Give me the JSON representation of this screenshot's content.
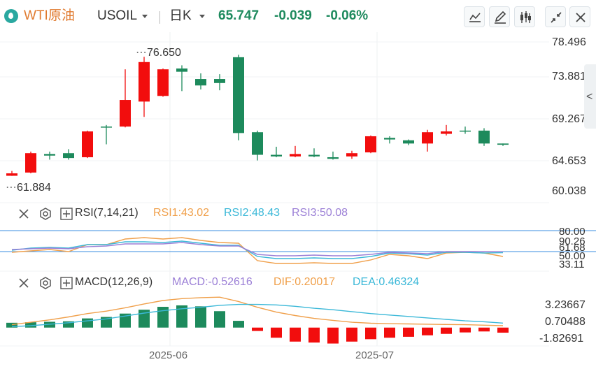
{
  "header": {
    "instrument_name": "WTI原油",
    "symbol": "USOIL",
    "period": "日K",
    "price": "65.747",
    "change": "-0.039",
    "change_pct": "-0.06%"
  },
  "toolbar_icons": [
    "line-chart-icon",
    "pencil-icon",
    "candlestick-icon",
    "collapse-icon",
    "close-icon"
  ],
  "colors": {
    "up": "#f20d0d",
    "down": "#1d8a5c",
    "title": "#e07a2e",
    "rsi1": "#f0a04b",
    "rsi2": "#3bb8d8",
    "rsi3": "#9b7fd6",
    "dif": "#f0a04b",
    "dea": "#3bb8d8"
  },
  "price_axis": {
    "labels": [
      "78.496",
      "73.881",
      "69.267",
      "64.653",
      "60.038"
    ]
  },
  "high_marker": "76.650",
  "low_marker": "61.884",
  "rsi": {
    "title": "RSI(7,14,21)",
    "rsi1_label": "RSI1:43.02",
    "rsi2_label": "RSI2:48.43",
    "rsi3_label": "RSI3:50.08",
    "axis_labels": [
      "80.00",
      "90.26",
      "61.68",
      "50.00",
      "33.11"
    ]
  },
  "macd": {
    "title": "MACD(12,26,9)",
    "macd_label": "MACD:-0.52616",
    "dif_label": "DIF:0.20017",
    "dea_label": "DEA:0.46324",
    "axis_labels": [
      "3.23667",
      "0.70488",
      "-1.82691"
    ]
  },
  "x_axis": {
    "labels": [
      "2025-06",
      "2025-07"
    ]
  },
  "chart_data": [
    {
      "type": "candlestick",
      "period": "1D",
      "ylim": [
        60.038,
        78.496
      ],
      "candles": [
        {
          "o": 61.9,
          "h": 62.5,
          "l": 61.884,
          "c": 62.2
        },
        {
          "o": 62.3,
          "h": 64.9,
          "l": 62.2,
          "c": 64.7
        },
        {
          "o": 64.6,
          "h": 64.9,
          "l": 63.9,
          "c": 64.4
        },
        {
          "o": 64.7,
          "h": 65.2,
          "l": 63.9,
          "c": 64.1
        },
        {
          "o": 64.2,
          "h": 67.5,
          "l": 64.1,
          "c": 67.4
        },
        {
          "o": 68.0,
          "h": 68.2,
          "l": 65.8,
          "c": 67.9
        },
        {
          "o": 68.0,
          "h": 75.1,
          "l": 67.9,
          "c": 71.3
        },
        {
          "o": 71.1,
          "h": 76.65,
          "l": 69.2,
          "c": 76.0
        },
        {
          "o": 71.8,
          "h": 75.2,
          "l": 71.7,
          "c": 75.1
        },
        {
          "o": 75.2,
          "h": 75.6,
          "l": 72.4,
          "c": 74.8
        },
        {
          "o": 73.9,
          "h": 74.6,
          "l": 72.6,
          "c": 73.1
        },
        {
          "o": 73.9,
          "h": 74.5,
          "l": 72.5,
          "c": 73.4
        },
        {
          "o": 76.6,
          "h": 76.9,
          "l": 66.3,
          "c": 67.2
        },
        {
          "o": 67.3,
          "h": 67.5,
          "l": 63.8,
          "c": 64.5
        },
        {
          "o": 64.5,
          "h": 65.5,
          "l": 64.2,
          "c": 64.3
        },
        {
          "o": 64.3,
          "h": 65.6,
          "l": 64.2,
          "c": 64.6
        },
        {
          "o": 64.5,
          "h": 65.3,
          "l": 64.2,
          "c": 64.3
        },
        {
          "o": 64.2,
          "h": 64.9,
          "l": 63.9,
          "c": 64.0
        },
        {
          "o": 64.3,
          "h": 65.0,
          "l": 64.0,
          "c": 64.7
        },
        {
          "o": 64.8,
          "h": 66.9,
          "l": 64.7,
          "c": 66.8
        },
        {
          "o": 66.6,
          "h": 66.8,
          "l": 65.9,
          "c": 66.4
        },
        {
          "o": 66.3,
          "h": 66.4,
          "l": 65.7,
          "c": 65.9
        },
        {
          "o": 65.9,
          "h": 67.6,
          "l": 64.9,
          "c": 67.3
        },
        {
          "o": 67.1,
          "h": 68.2,
          "l": 66.9,
          "c": 67.4
        },
        {
          "o": 67.5,
          "h": 68.0,
          "l": 67.1,
          "c": 67.4
        },
        {
          "o": 67.5,
          "h": 67.8,
          "l": 65.6,
          "c": 65.9
        },
        {
          "o": 65.9,
          "h": 65.9,
          "l": 65.6,
          "c": 65.747
        }
      ]
    },
    {
      "type": "line",
      "name": "RSI(7,14,21)",
      "series": [
        {
          "name": "RSI1",
          "values": [
            49,
            51,
            53,
            50,
            60,
            60,
            68,
            70,
            68,
            70,
            66,
            63,
            62,
            37,
            33,
            33,
            34,
            33,
            33,
            38,
            46,
            44,
            40,
            48,
            49,
            48,
            43.02
          ]
        },
        {
          "name": "RSI2",
          "values": [
            52,
            55,
            56,
            55,
            60,
            60,
            64,
            64,
            63,
            65,
            62,
            59,
            59,
            43,
            40,
            40,
            41,
            40,
            40,
            43,
            48,
            47,
            45,
            49,
            49,
            48,
            48.43
          ]
        },
        {
          "name": "RSI3",
          "values": [
            53,
            54,
            55,
            54,
            57,
            58,
            61,
            61,
            61,
            63,
            60,
            58,
            58,
            46,
            44,
            44,
            45,
            44,
            44,
            46,
            49,
            48,
            47,
            50,
            50,
            50,
            50.08
          ]
        }
      ],
      "ref_lines": [
        80,
        50
      ]
    },
    {
      "type": "bar",
      "name": "MACD(12,26,9)",
      "macd": [
        0.5,
        0.55,
        0.6,
        0.65,
        0.95,
        1.1,
        1.45,
        1.85,
        2.15,
        2.3,
        2.2,
        1.7,
        0.7,
        -0.35,
        -1.05,
        -1.45,
        -1.55,
        -1.65,
        -1.45,
        -1.2,
        -1.05,
        -0.95,
        -0.8,
        -0.65,
        -0.5,
        -0.4,
        -0.52616
      ],
      "series": [
        {
          "name": "DIF",
          "values": [
            0.3,
            0.55,
            0.8,
            1.1,
            1.45,
            1.7,
            2.05,
            2.45,
            2.8,
            3.0,
            3.1,
            3.15,
            2.7,
            2.1,
            1.6,
            1.25,
            0.95,
            0.75,
            0.55,
            0.45,
            0.4,
            0.38,
            0.35,
            0.32,
            0.3,
            0.25,
            0.20017
          ]
        },
        {
          "name": "DEA",
          "values": [
            0.1,
            0.2,
            0.35,
            0.5,
            0.7,
            0.9,
            1.2,
            1.5,
            1.75,
            1.95,
            2.1,
            2.3,
            2.4,
            2.4,
            2.35,
            2.2,
            2.0,
            1.85,
            1.65,
            1.45,
            1.3,
            1.15,
            1.0,
            0.85,
            0.7,
            0.6,
            0.46324
          ]
        }
      ],
      "ylim": [
        -1.82691,
        3.23667
      ]
    }
  ]
}
